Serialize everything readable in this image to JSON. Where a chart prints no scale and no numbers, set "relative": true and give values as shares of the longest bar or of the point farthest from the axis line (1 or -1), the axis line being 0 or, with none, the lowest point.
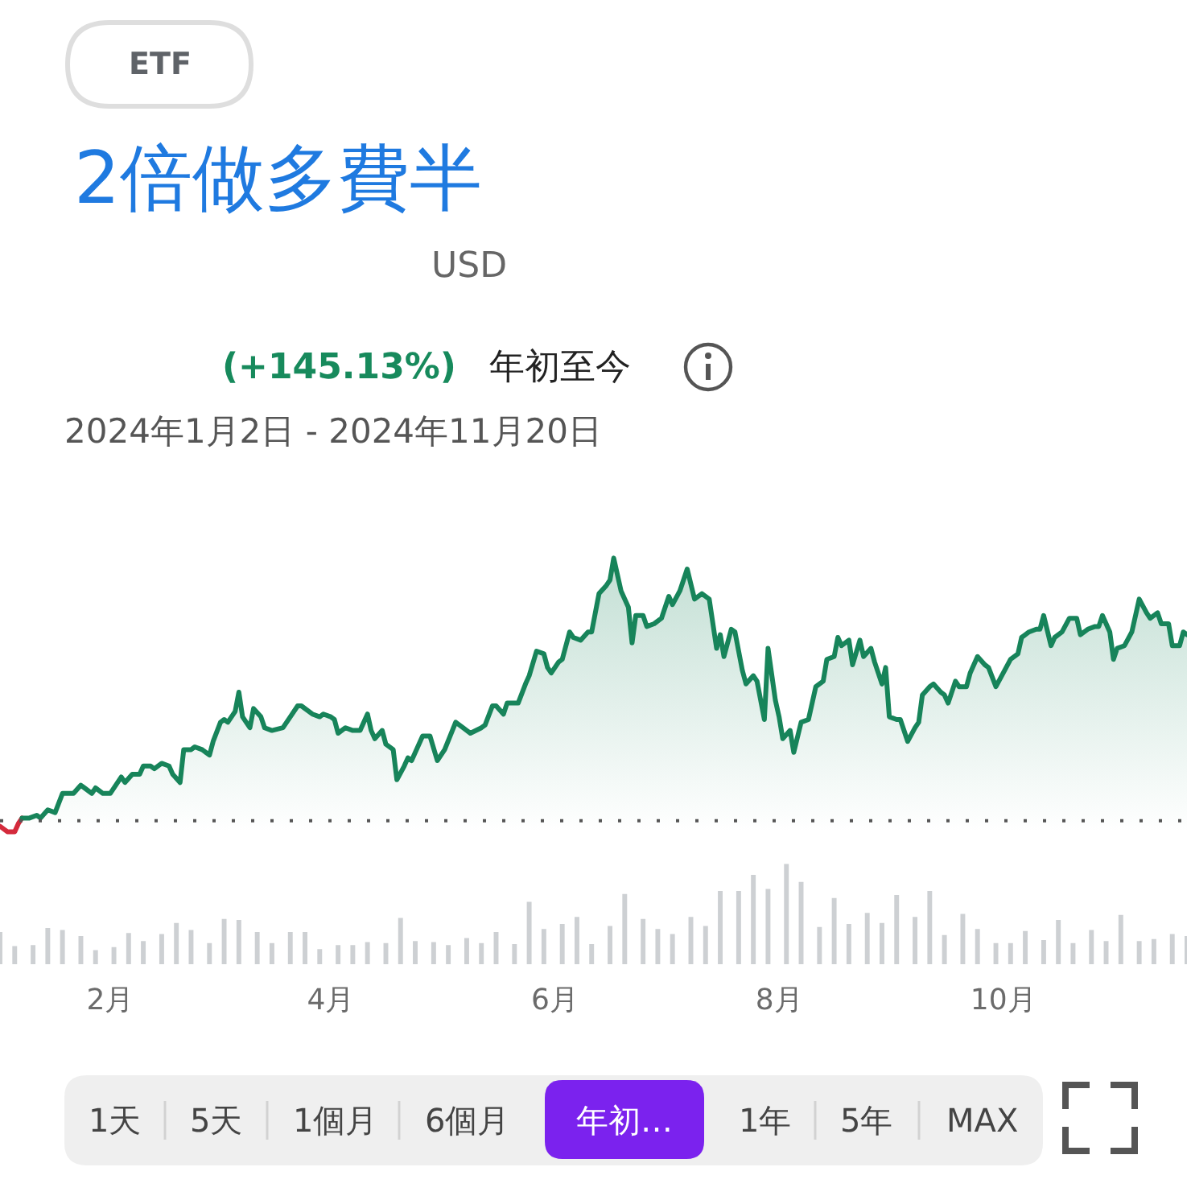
{
  "chart_data": [
    {
      "type": "area",
      "title": "2倍做多費半",
      "annotations": [
        "ETF",
        "USD",
        "(+145.13%)",
        "年初至今",
        "2024年1月2日 - 2024年11月20日"
      ],
      "relative": true,
      "xlim": [
        "2024-01-02",
        "2024-11-20"
      ],
      "tick_labels": false,
      "ref_lines": [
        {
          "axis": "y",
          "value": 0.04,
          "line_style": "dotted",
          "color": "#555555"
        }
      ],
      "series": [
        {
          "type": "line",
          "color": "#d42a3c",
          "x": [
            "2024-01-02",
            "2024-01-04",
            "2024-01-06",
            "2024-01-07",
            "2024-01-08"
          ],
          "values": [
            0.02,
            0,
            0,
            0.03,
            0.05
          ]
        },
        {
          "color": "#17845a",
          "x": [
            "2024-01-08",
            "2024-01-10",
            "2024-01-12",
            "2024-01-13",
            "2024-01-15",
            "2024-01-17",
            "2024-01-19",
            "2024-01-22",
            "2024-01-24",
            "2024-01-25",
            "2024-01-27",
            "2024-01-28",
            "2024-01-30",
            "2024-02-01",
            "2024-02-04",
            "2024-02-05",
            "2024-02-07",
            "2024-02-09",
            "2024-02-10",
            "2024-02-12",
            "2024-02-13",
            "2024-02-15",
            "2024-02-17",
            "2024-02-18",
            "2024-02-20",
            "2024-02-21",
            "2024-02-23",
            "2024-02-24",
            "2024-02-26",
            "2024-02-28",
            "2024-02-29",
            "2024-03-02",
            "2024-03-03",
            "2024-03-04",
            "2024-03-06",
            "2024-03-07",
            "2024-03-08",
            "2024-03-10",
            "2024-03-11",
            "2024-03-13",
            "2024-03-14",
            "2024-03-16",
            "2024-03-19",
            "2024-03-21",
            "2024-03-23",
            "2024-03-24",
            "2024-03-27",
            "2024-03-29",
            "2024-03-30",
            "2024-04-01",
            "2024-04-02",
            "2024-04-03",
            "2024-04-05",
            "2024-04-07",
            "2024-04-09",
            "2024-04-11",
            "2024-04-12",
            "2024-04-13",
            "2024-04-15",
            "2024-04-16",
            "2024-04-18",
            "2024-04-19",
            "2024-04-21",
            "2024-04-22",
            "2024-04-23",
            "2024-04-26",
            "2024-04-28",
            "2024-04-30",
            "2024-05-02",
            "2024-05-05",
            "2024-05-07",
            "2024-05-08",
            "2024-05-09",
            "2024-05-12",
            "2024-05-13",
            "2024-05-15",
            "2024-05-16",
            "2024-05-18",
            "2024-05-19",
            "2024-05-22",
            "2024-05-24",
            "2024-05-25",
            "2024-05-27",
            "2024-05-29",
            "2024-05-30",
            "2024-05-31",
            "2024-06-02",
            "2024-06-03",
            "2024-06-05",
            "2024-06-06",
            "2024-06-08",
            "2024-06-10",
            "2024-06-11",
            "2024-06-13",
            "2024-06-15",
            "2024-06-16",
            "2024-06-17",
            "2024-06-19",
            "2024-06-21",
            "2024-06-22",
            "2024-06-23",
            "2024-06-25",
            "2024-06-26",
            "2024-06-28",
            "2024-06-30",
            "2024-07-02",
            "2024-07-03",
            "2024-07-05",
            "2024-07-07",
            "2024-07-09",
            "2024-07-11",
            "2024-07-13",
            "2024-07-15",
            "2024-07-16",
            "2024-07-17",
            "2024-07-19",
            "2024-07-20",
            "2024-07-22",
            "2024-07-23",
            "2024-07-25",
            "2024-07-26",
            "2024-07-28",
            "2024-07-29",
            "2024-07-31",
            "2024-08-01",
            "2024-08-02",
            "2024-08-04",
            "2024-08-05",
            "2024-08-07",
            "2024-08-09",
            "2024-08-11",
            "2024-08-13",
            "2024-08-14",
            "2024-08-16",
            "2024-08-17",
            "2024-08-18",
            "2024-08-20",
            "2024-08-21",
            "2024-08-23",
            "2024-08-24",
            "2024-08-26",
            "2024-08-27",
            "2024-08-29",
            "2024-08-30",
            "2024-08-31",
            "2024-09-02",
            "2024-09-03",
            "2024-09-05",
            "2024-09-07",
            "2024-09-08",
            "2024-09-09",
            "2024-09-11",
            "2024-09-12",
            "2024-09-14",
            "2024-09-15",
            "2024-09-16",
            "2024-09-18",
            "2024-09-19",
            "2024-09-21",
            "2024-09-22",
            "2024-09-24",
            "2024-09-26",
            "2024-09-27",
            "2024-09-29",
            "2024-10-01",
            "2024-10-03",
            "2024-10-05",
            "2024-10-06",
            "2024-10-08",
            "2024-10-10",
            "2024-10-11",
            "2024-10-12",
            "2024-10-14",
            "2024-10-15",
            "2024-10-17",
            "2024-10-19",
            "2024-10-21",
            "2024-10-22",
            "2024-10-24",
            "2024-10-26",
            "2024-10-27",
            "2024-10-28",
            "2024-10-30",
            "2024-10-31",
            "2024-11-01",
            "2024-11-03",
            "2024-11-05",
            "2024-11-07",
            "2024-11-09",
            "2024-11-10",
            "2024-11-12",
            "2024-11-13",
            "2024-11-15",
            "2024-11-16",
            "2024-11-18",
            "2024-11-19",
            "2024-11-20"
          ],
          "values": [
            0.05,
            0.05,
            0.06,
            0.05,
            0.08,
            0.07,
            0.14,
            0.14,
            0.17,
            0.16,
            0.14,
            0.16,
            0.14,
            0.14,
            0.2,
            0.18,
            0.21,
            0.21,
            0.24,
            0.24,
            0.23,
            0.25,
            0.24,
            0.21,
            0.18,
            0.3,
            0.3,
            0.31,
            0.3,
            0.28,
            0.33,
            0.4,
            0.41,
            0.4,
            0.44,
            0.51,
            0.42,
            0.38,
            0.45,
            0.42,
            0.38,
            0.37,
            0.38,
            0.42,
            0.46,
            0.46,
            0.43,
            0.42,
            0.43,
            0.42,
            0.41,
            0.36,
            0.38,
            0.37,
            0.37,
            0.43,
            0.37,
            0.34,
            0.37,
            0.32,
            0.3,
            0.19,
            0.24,
            0.27,
            0.26,
            0.35,
            0.35,
            0.26,
            0.3,
            0.4,
            0.38,
            0.37,
            0.36,
            0.38,
            0.39,
            0.46,
            0.46,
            0.43,
            0.47,
            0.47,
            0.54,
            0.57,
            0.66,
            0.65,
            0.6,
            0.58,
            0.62,
            0.63,
            0.73,
            0.71,
            0.7,
            0.73,
            0.73,
            0.87,
            0.9,
            0.92,
            1.0,
            0.88,
            0.82,
            0.69,
            0.79,
            0.79,
            0.75,
            0.76,
            0.78,
            0.86,
            0.83,
            0.88,
            0.96,
            0.85,
            0.87,
            0.85,
            0.67,
            0.72,
            0.64,
            0.74,
            0.73,
            0.59,
            0.54,
            0.57,
            0.55,
            0.41,
            0.67,
            0.48,
            0.42,
            0.34,
            0.37,
            0.29,
            0.4,
            0.41,
            0.53,
            0.55,
            0.63,
            0.64,
            0.71,
            0.68,
            0.7,
            0.61,
            0.7,
            0.64,
            0.67,
            0.62,
            0.54,
            0.6,
            0.42,
            0.41,
            0.41,
            0.33,
            0.38,
            0.4,
            0.5,
            0.53,
            0.54,
            0.51,
            0.5,
            0.47,
            0.55,
            0.53,
            0.53,
            0.58,
            0.64,
            0.61,
            0.6,
            0.53,
            0.58,
            0.63,
            0.65,
            0.71,
            0.73,
            0.74,
            0.74,
            0.79,
            0.68,
            0.71,
            0.73,
            0.78,
            0.78,
            0.72,
            0.74,
            0.75,
            0.75,
            0.79,
            0.73,
            0.63,
            0.67,
            0.68,
            0.73,
            0.85,
            0.8,
            0.78,
            0.8,
            0.76,
            0.76,
            0.68,
            0.68,
            0.73,
            0.72
          ]
        }
      ]
    },
    {
      "type": "bar",
      "relative": true,
      "color": "#cdd0d3",
      "xlim": [
        "2024-01-02",
        "2024-11-20"
      ],
      "tick_labels": "x",
      "xticks": [
        {
          "value": "2024-02-01",
          "label": "2月"
        },
        {
          "value": "2024-04-01",
          "label": "4月"
        },
        {
          "value": "2024-06-01",
          "label": "6月"
        },
        {
          "value": "2024-08-01",
          "label": "8月"
        },
        {
          "value": "2024-10-01",
          "label": "10月"
        }
      ],
      "x": [
        "2024-01-02",
        "2024-01-06",
        "2024-01-11",
        "2024-01-15",
        "2024-01-19",
        "2024-01-24",
        "2024-01-28",
        "2024-02-02",
        "2024-02-06",
        "2024-02-10",
        "2024-02-15",
        "2024-02-19",
        "2024-02-23",
        "2024-02-28",
        "2024-03-03",
        "2024-03-07",
        "2024-03-12",
        "2024-03-16",
        "2024-03-21",
        "2024-03-25",
        "2024-03-29",
        "2024-04-03",
        "2024-04-07",
        "2024-04-11",
        "2024-04-16",
        "2024-04-20",
        "2024-04-24",
        "2024-04-29",
        "2024-05-03",
        "2024-05-08",
        "2024-05-12",
        "2024-05-16",
        "2024-05-21",
        "2024-05-25",
        "2024-05-29",
        "2024-06-03",
        "2024-06-07",
        "2024-06-11",
        "2024-06-16",
        "2024-06-20",
        "2024-06-25",
        "2024-06-29",
        "2024-07-03",
        "2024-07-08",
        "2024-07-12",
        "2024-07-16",
        "2024-07-21",
        "2024-07-25",
        "2024-07-29",
        "2024-08-03",
        "2024-08-07",
        "2024-08-12",
        "2024-08-16",
        "2024-08-20",
        "2024-08-25",
        "2024-08-29",
        "2024-09-02",
        "2024-09-07",
        "2024-09-11",
        "2024-09-15",
        "2024-09-20",
        "2024-09-24",
        "2024-09-29",
        "2024-10-03",
        "2024-10-07",
        "2024-10-12",
        "2024-10-16",
        "2024-10-20",
        "2024-10-25",
        "2024-10-29",
        "2024-11-02",
        "2024-11-07",
        "2024-11-11",
        "2024-11-16",
        "2024-11-20"
      ],
      "values": [
        0.32,
        0.18,
        0.19,
        0.36,
        0.34,
        0.28,
        0.14,
        0.17,
        0.31,
        0.23,
        0.3,
        0.41,
        0.34,
        0.21,
        0.45,
        0.44,
        0.32,
        0.21,
        0.32,
        0.32,
        0.15,
        0.19,
        0.19,
        0.22,
        0.21,
        0.46,
        0.23,
        0.22,
        0.19,
        0.26,
        0.21,
        0.32,
        0.2,
        0.62,
        0.35,
        0.4,
        0.47,
        0.2,
        0.38,
        0.7,
        0.45,
        0.35,
        0.3,
        0.47,
        0.38,
        0.73,
        0.73,
        0.89,
        0.75,
        1.0,
        0.82,
        0.37,
        0.66,
        0.4,
        0.51,
        0.41,
        0.69,
        0.47,
        0.73,
        0.29,
        0.5,
        0.35,
        0.21,
        0.21,
        0.33,
        0.24,
        0.44,
        0.21,
        0.34,
        0.23,
        0.49,
        0.23,
        0.25,
        0.3,
        0.28
      ]
    },
    {
      "type": "other",
      "categories": [
        "1天",
        "5天",
        "1個月",
        "6個月",
        "年初…",
        "1年",
        "5年",
        "MAX"
      ],
      "colors": [
        null,
        null,
        null,
        null,
        "#7b22ee",
        null,
        null,
        null
      ]
    }
  ]
}
